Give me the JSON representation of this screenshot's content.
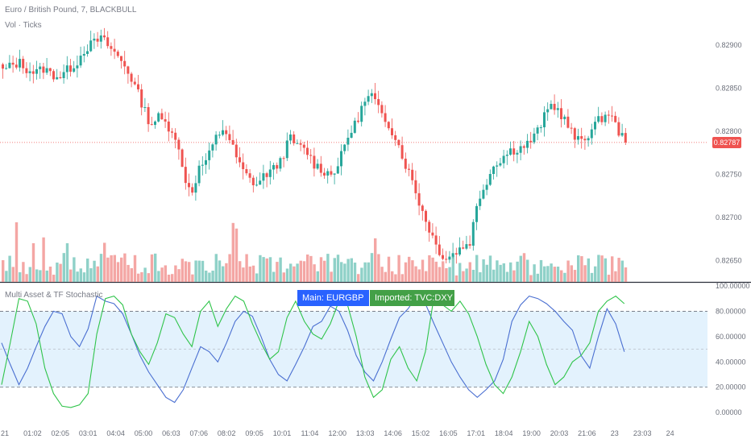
{
  "header": {
    "symbol_line": "Euro / British Pound, 7, BLACKBULL",
    "volume_label": "Vol · Ticks",
    "indicator_label": "Multi Asset & TF Stochastic"
  },
  "legend": {
    "main_label": "Main: EURGBP",
    "imported_label": "Imported: TVC:DXY"
  },
  "colors": {
    "up": "#26a69a",
    "down": "#ef5350",
    "vol_up": "#8fd1c8",
    "vol_down": "#f4a6a4",
    "main_line": "#4a6fd1",
    "imported_line": "#2fc44a",
    "band": "#e3f2fd",
    "last_price": "#ef5350",
    "main_tag": "#2962ff",
    "imported_tag": "#43a047"
  },
  "last_price": "0.82787",
  "chart_data": [
    {
      "type": "candlestick",
      "title": "Euro / British Pound, 7, BLACKBULL",
      "ylim": [
        0.82625,
        0.82945
      ],
      "y_ticks": [
        "0.82900",
        "0.82850",
        "0.82800",
        "0.82750",
        "0.82700",
        "0.82650"
      ],
      "y_tick_values": [
        0.829,
        0.8285,
        0.828,
        0.8275,
        0.827,
        0.8265
      ],
      "x_ticks": [
        "21",
        "01:02",
        "02:05",
        "03:01",
        "04:04",
        "05:00",
        "06:03",
        "07:06",
        "08:02",
        "09:05",
        "10:01",
        "11:04",
        "12:00",
        "13:03",
        "14:06",
        "15:02",
        "16:05",
        "17:01",
        "18:04",
        "19:00",
        "20:03",
        "21:06",
        "23",
        "23:03",
        "24"
      ],
      "close_path": [
        0.8287,
        0.82876,
        0.8288,
        0.82872,
        0.82868,
        0.82873,
        0.82866,
        0.82864,
        0.82872,
        0.8288,
        0.82896,
        0.82902,
        0.82908,
        0.82898,
        0.82887,
        0.82875,
        0.82855,
        0.82832,
        0.82808,
        0.82816,
        0.82808,
        0.82798,
        0.82752,
        0.82728,
        0.82758,
        0.82768,
        0.82792,
        0.82805,
        0.82782,
        0.82758,
        0.82745,
        0.82738,
        0.8275,
        0.82755,
        0.82768,
        0.82792,
        0.82782,
        0.82778,
        0.82762,
        0.82755,
        0.8275,
        0.82762,
        0.82792,
        0.82808,
        0.82832,
        0.82842,
        0.82822,
        0.8281,
        0.82792,
        0.82765,
        0.82742,
        0.82712,
        0.82688,
        0.82665,
        0.82652,
        0.82658,
        0.82665,
        0.82672,
        0.8272,
        0.82742,
        0.82762,
        0.8277,
        0.82778,
        0.8278,
        0.82785,
        0.82795,
        0.82815,
        0.82832,
        0.82822,
        0.82806,
        0.82788,
        0.82792,
        0.82804,
        0.82815,
        0.82822,
        0.82802,
        0.82787
      ],
      "last_price": 0.82787,
      "volume": {
        "label": "Vol · Ticks",
        "bars": 185
      }
    },
    {
      "type": "line",
      "title": "Multi Asset & TF Stochastic",
      "ylim": [
        -5,
        100
      ],
      "y_ticks": [
        "100.00000",
        "80.00000",
        "60.00000",
        "40.00000",
        "20.00000",
        "0.00000"
      ],
      "y_tick_values": [
        100,
        80,
        60,
        40,
        20,
        0
      ],
      "band": [
        20,
        80
      ],
      "series": [
        {
          "name": "Main: EURGBP",
          "values": [
            55,
            38,
            22,
            35,
            52,
            68,
            80,
            78,
            60,
            52,
            66,
            92,
            88,
            86,
            78,
            62,
            45,
            32,
            22,
            12,
            8,
            18,
            35,
            52,
            48,
            40,
            55,
            72,
            80,
            76,
            60,
            42,
            30,
            25,
            38,
            52,
            68,
            72,
            84,
            80,
            65,
            45,
            32,
            25,
            40,
            58,
            75,
            82,
            92,
            86,
            70,
            55,
            40,
            28,
            18,
            12,
            18,
            25,
            42,
            72,
            85,
            92,
            90,
            86,
            80,
            72,
            65,
            45,
            35,
            60,
            82,
            70,
            48
          ]
        },
        {
          "name": "Imported: TVC:DXY",
          "values": [
            22,
            55,
            90,
            88,
            70,
            35,
            15,
            5,
            4,
            6,
            15,
            62,
            90,
            92,
            85,
            62,
            48,
            38,
            55,
            78,
            75,
            62,
            52,
            80,
            88,
            68,
            82,
            92,
            88,
            70,
            55,
            42,
            48,
            75,
            88,
            72,
            62,
            58,
            70,
            88,
            85,
            60,
            28,
            12,
            18,
            42,
            52,
            35,
            25,
            48,
            92,
            85,
            80,
            88,
            78,
            60,
            38,
            22,
            15,
            28,
            48,
            72,
            60,
            38,
            22,
            28,
            40,
            45,
            55,
            80,
            88,
            92,
            86
          ]
        }
      ]
    }
  ]
}
